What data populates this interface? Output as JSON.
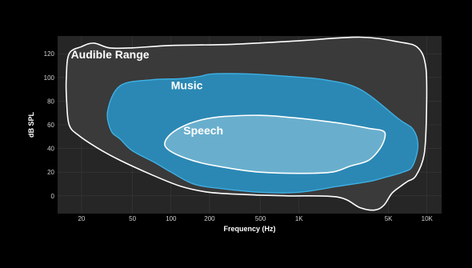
{
  "chart_data": {
    "type": "area",
    "title": "",
    "xlabel": "Frequency (Hz)",
    "ylabel": "dB SPL",
    "x_scale": "log",
    "xlim": [
      13,
      13000
    ],
    "ylim": [
      -15,
      135
    ],
    "x_ticks": [
      {
        "value": 20,
        "label": "20"
      },
      {
        "value": 50,
        "label": "50"
      },
      {
        "value": 100,
        "label": "100"
      },
      {
        "value": 200,
        "label": "200"
      },
      {
        "value": 500,
        "label": "500"
      },
      {
        "value": 1000,
        "label": "1K"
      },
      {
        "value": 5000,
        "label": "5K"
      },
      {
        "value": 10000,
        "label": "10K"
      }
    ],
    "y_ticks": [
      {
        "value": 0,
        "label": "0"
      },
      {
        "value": 20,
        "label": "20"
      },
      {
        "value": 40,
        "label": "40"
      },
      {
        "value": 60,
        "label": "60"
      },
      {
        "value": 80,
        "label": "80"
      },
      {
        "value": 100,
        "label": "100"
      },
      {
        "value": 120,
        "label": "120"
      }
    ],
    "grid": true,
    "colors": {
      "background": "#000000",
      "plot_background": "#262626",
      "grid": "#3a3a3a",
      "audible_fill": "#3a3a3a",
      "audible_stroke": "#ffffff",
      "music_fill": "#2a8fbf",
      "music_stroke": "#3fb4ea",
      "speech_fill": "#6fb2cf",
      "speech_stroke": "#ffffff"
    },
    "series": [
      {
        "name": "Audible Range",
        "points": [
          [
            16,
            120
          ],
          [
            20,
            126
          ],
          [
            25,
            129
          ],
          [
            33,
            125
          ],
          [
            50,
            125
          ],
          [
            100,
            127
          ],
          [
            300,
            128
          ],
          [
            1000,
            131
          ],
          [
            3000,
            134
          ],
          [
            6000,
            130
          ],
          [
            8500,
            125
          ],
          [
            9800,
            108
          ],
          [
            9900,
            70
          ],
          [
            9500,
            35
          ],
          [
            8200,
            17
          ],
          [
            7000,
            12
          ],
          [
            6200,
            8
          ],
          [
            5300,
            2
          ],
          [
            4600,
            -8
          ],
          [
            3900,
            -12
          ],
          [
            3000,
            -10
          ],
          [
            2000,
            -1
          ],
          [
            800,
            0
          ],
          [
            400,
            1
          ],
          [
            200,
            3
          ],
          [
            120,
            8
          ],
          [
            70,
            18
          ],
          [
            40,
            30
          ],
          [
            27,
            40
          ],
          [
            19,
            51
          ],
          [
            16,
            60
          ],
          [
            15.3,
            80
          ],
          [
            15.2,
            100
          ]
        ]
      },
      {
        "name": "Music",
        "points": [
          [
            40,
            93
          ],
          [
            70,
            98
          ],
          [
            120,
            99
          ],
          [
            170,
            101
          ],
          [
            210,
            103
          ],
          [
            400,
            103
          ],
          [
            800,
            101
          ],
          [
            1600,
            98
          ],
          [
            3000,
            90
          ],
          [
            6000,
            65
          ],
          [
            7800,
            56
          ],
          [
            8500,
            42
          ],
          [
            7700,
            25
          ],
          [
            6500,
            20
          ],
          [
            4500,
            15
          ],
          [
            3500,
            12
          ],
          [
            2000,
            8
          ],
          [
            1000,
            3
          ],
          [
            500,
            3
          ],
          [
            250,
            6
          ],
          [
            150,
            10
          ],
          [
            100,
            20
          ],
          [
            75,
            28
          ],
          [
            50,
            38
          ],
          [
            40,
            48
          ],
          [
            34,
            55
          ],
          [
            32,
            72
          ]
        ]
      },
      {
        "name": "Speech",
        "points": [
          [
            120,
            58
          ],
          [
            170,
            64
          ],
          [
            260,
            67
          ],
          [
            500,
            68
          ],
          [
            900,
            66
          ],
          [
            1600,
            63
          ],
          [
            2500,
            60
          ],
          [
            3500,
            57
          ],
          [
            4500,
            55
          ],
          [
            4700,
            50
          ],
          [
            4300,
            40
          ],
          [
            3500,
            30
          ],
          [
            2500,
            25
          ],
          [
            1800,
            20
          ],
          [
            1000,
            19
          ],
          [
            500,
            20
          ],
          [
            300,
            23
          ],
          [
            170,
            28
          ],
          [
            110,
            35
          ],
          [
            90,
            42
          ],
          [
            95,
            50
          ]
        ]
      }
    ]
  }
}
